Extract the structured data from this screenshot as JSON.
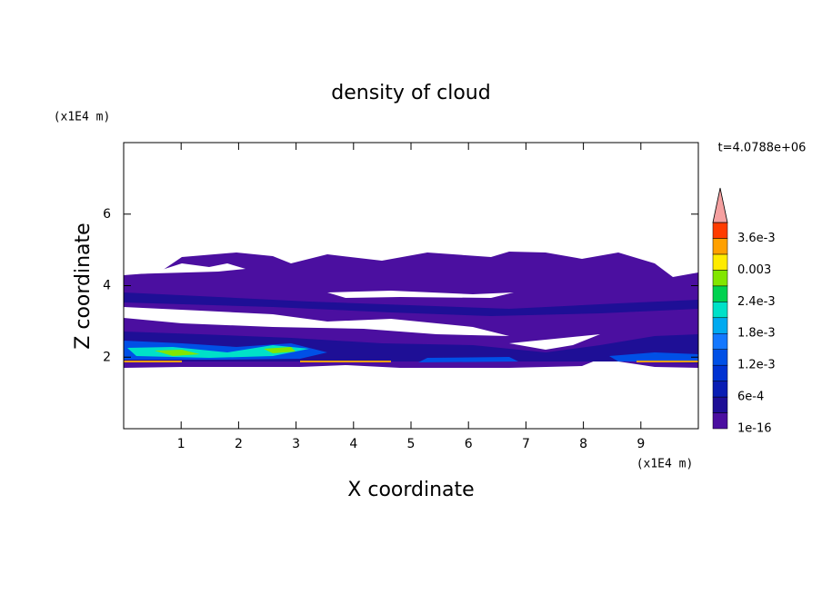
{
  "chart_data": {
    "type": "contour",
    "title": "density of cloud",
    "x_label": "X coordinate",
    "y_label": "Z coordinate",
    "x_unit": "(x1E4 m)",
    "y_unit": "(x1E4 m)",
    "time_label": "t=4.0788e+06",
    "xlim": [
      0,
      10
    ],
    "xticks": [
      1,
      2,
      3,
      4,
      5,
      6,
      7,
      8,
      9
    ],
    "ylim": [
      0,
      8
    ],
    "yticks": [
      2,
      4,
      6
    ],
    "levels": [
      1e-16,
      0.0003,
      0.0006,
      0.0009,
      0.0012,
      0.0015,
      0.0018,
      0.0021,
      0.0024,
      0.0027,
      0.003,
      0.0033,
      0.0036,
      0.0039
    ],
    "colors": [
      "#4b0fa0",
      "#1e0f96",
      "#0a1eb4",
      "#0032d2",
      "#0050e6",
      "#1478ff",
      "#00aaf0",
      "#00e1c8",
      "#00d250",
      "#82e600",
      "#ffeb00",
      "#ffa000",
      "#ff3c00"
    ],
    "extend_color": "#f5a0a0",
    "colorbar_ticks": [
      1e-16,
      {
        "value": 0.0006,
        "label": "6e-4"
      },
      {
        "value": 0.0012,
        "label": "1.2e-3"
      },
      {
        "value": 0.0018,
        "label": "1.8e-3"
      },
      {
        "value": 0.0024,
        "label": "2.4e-3"
      },
      0.003,
      {
        "value": 0.0036,
        "label": "3.6e-3"
      }
    ]
  }
}
